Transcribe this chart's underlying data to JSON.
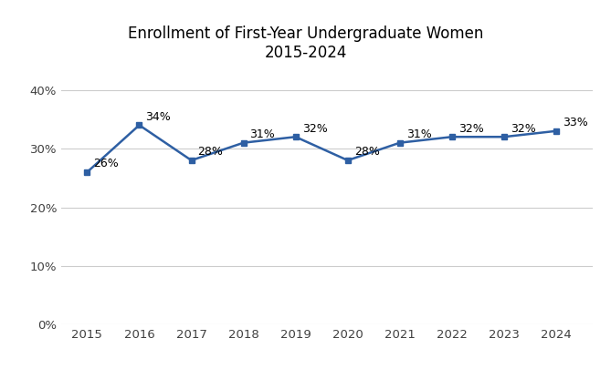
{
  "title_line1": "Enrollment of First-Year Undergraduate Women",
  "title_line2": "2015-2024",
  "years": [
    2015,
    2016,
    2017,
    2018,
    2019,
    2020,
    2021,
    2022,
    2023,
    2024
  ],
  "values": [
    0.26,
    0.34,
    0.28,
    0.31,
    0.32,
    0.28,
    0.31,
    0.32,
    0.32,
    0.33
  ],
  "labels": [
    "26%",
    "34%",
    "28%",
    "31%",
    "32%",
    "28%",
    "31%",
    "32%",
    "32%",
    "33%"
  ],
  "line_color": "#2E5FA3",
  "marker": "s",
  "marker_size": 5,
  "ylim": [
    0,
    0.44
  ],
  "yticks": [
    0.0,
    0.1,
    0.2,
    0.3,
    0.4
  ],
  "ytick_labels": [
    "0%",
    "10%",
    "20%",
    "30%",
    "40%"
  ],
  "grid_color": "#cccccc",
  "title_fontsize": 12,
  "label_fontsize": 9,
  "tick_fontsize": 9.5,
  "background_color": "#ffffff"
}
